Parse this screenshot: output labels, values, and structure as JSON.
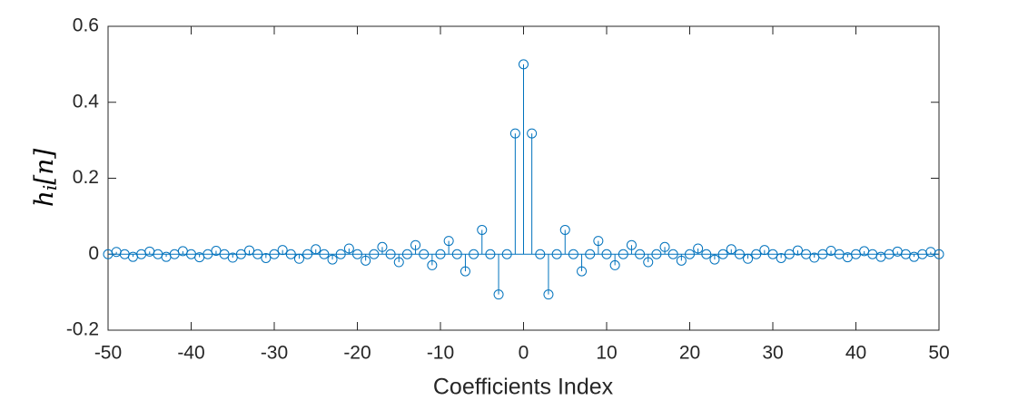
{
  "chart_data": {
    "type": "stem",
    "xlabel": "Coefficients Index",
    "ylabel": {
      "symbol": "h",
      "subscript": "i",
      "argument": "[n]"
    },
    "color": "#0072bd",
    "x": [
      -50,
      -49,
      -48,
      -47,
      -46,
      -45,
      -44,
      -43,
      -42,
      -41,
      -40,
      -39,
      -38,
      -37,
      -36,
      -35,
      -34,
      -33,
      -32,
      -31,
      -30,
      -29,
      -28,
      -27,
      -26,
      -25,
      -24,
      -23,
      -22,
      -21,
      -20,
      -19,
      -18,
      -17,
      -16,
      -15,
      -14,
      -13,
      -12,
      -11,
      -10,
      -9,
      -8,
      -7,
      -6,
      -5,
      -4,
      -3,
      -2,
      -1,
      0,
      1,
      2,
      3,
      4,
      5,
      6,
      7,
      8,
      9,
      10,
      11,
      12,
      13,
      14,
      15,
      16,
      17,
      18,
      19,
      20,
      21,
      22,
      23,
      24,
      25,
      26,
      27,
      28,
      29,
      30,
      31,
      32,
      33,
      34,
      35,
      36,
      37,
      38,
      39,
      40,
      41,
      42,
      43,
      44,
      45,
      46,
      47,
      48,
      49,
      50
    ],
    "values": [
      0,
      0.006,
      0,
      -0.007,
      0,
      0.007,
      0,
      -0.007,
      0,
      0.008,
      0,
      -0.008,
      0,
      0.009,
      0,
      -0.009,
      0,
      0.01,
      0,
      -0.01,
      0,
      0.011,
      0,
      -0.012,
      0,
      0.013,
      0,
      -0.014,
      0,
      0.015,
      0,
      -0.017,
      0,
      0.019,
      0,
      -0.021,
      0,
      0.024,
      0,
      -0.029,
      0,
      0.035,
      0,
      -0.045,
      0,
      0.064,
      0,
      -0.106,
      0,
      0.318,
      0.5,
      0.318,
      0,
      -0.106,
      0,
      0.064,
      0,
      -0.045,
      0,
      0.035,
      0,
      -0.029,
      0,
      0.024,
      0,
      -0.021,
      0,
      0.019,
      0,
      -0.017,
      0,
      0.015,
      0,
      -0.014,
      0,
      0.013,
      0,
      -0.012,
      0,
      0.011,
      0,
      -0.01,
      0,
      0.01,
      0,
      -0.009,
      0,
      0.009,
      0,
      -0.008,
      0,
      0.008,
      0,
      -0.007,
      0,
      0.007,
      0,
      -0.007,
      0,
      0.006,
      0
    ],
    "xlim": [
      -50,
      50
    ],
    "xticks": [
      -50,
      -40,
      -30,
      -20,
      -10,
      0,
      10,
      20,
      30,
      40,
      50
    ],
    "ylim": [
      -0.2,
      0.6
    ],
    "yticks": [
      -0.2,
      0,
      0.2,
      0.4,
      0.6
    ],
    "grid": false
  }
}
